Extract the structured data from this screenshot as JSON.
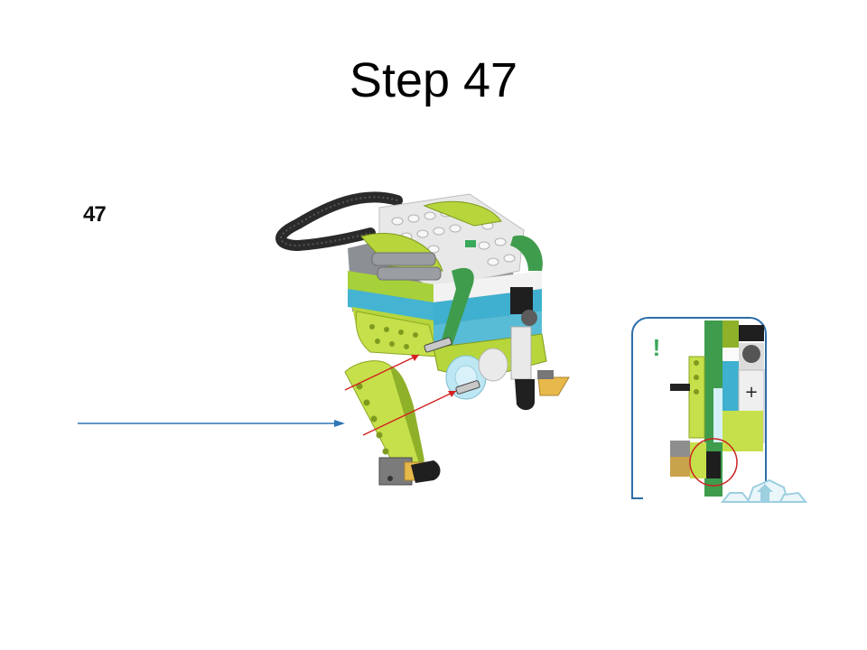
{
  "slide": {
    "title": "Step 47",
    "step_number": "47"
  },
  "callout": {
    "mark": "!"
  }
}
